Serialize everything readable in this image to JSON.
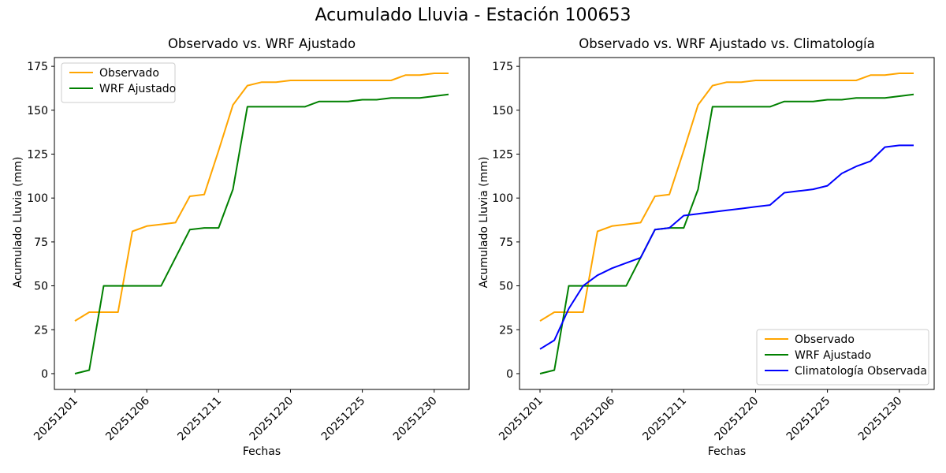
{
  "figure": {
    "title": "Acumulado Lluvia - Estación 100653",
    "background": "#ffffff",
    "axis_color": "#000000"
  },
  "chart_data": [
    {
      "type": "line",
      "title": "Observado vs. WRF Ajustado",
      "xlabel": "Fechas",
      "ylabel": "Acumulado Lluvia (mm)",
      "grid": false,
      "n_points": 27,
      "ylim": [
        -9,
        180
      ],
      "y_ticks": [
        0,
        25,
        50,
        75,
        100,
        125,
        150,
        175
      ],
      "x_tick_positions": [
        0,
        5,
        10,
        15,
        20,
        25
      ],
      "x_tick_labels": [
        "20251201",
        "20251206",
        "20251211",
        "20251220",
        "20251225",
        "20251230"
      ],
      "x_tick_rotation": 45,
      "line_width": 2,
      "legend_position": "upper-left",
      "series": [
        {
          "name": "Observado",
          "color": "#FFA500",
          "values": [
            30,
            35,
            35,
            35,
            81,
            84,
            85,
            86,
            101,
            102,
            127,
            153,
            164,
            166,
            166,
            167,
            167,
            167,
            167,
            167,
            167,
            167,
            167,
            170,
            170,
            171,
            171
          ]
        },
        {
          "name": "WRF Ajustado",
          "color": "#008000",
          "values": [
            0,
            2,
            50,
            50,
            50,
            50,
            50,
            66,
            82,
            83,
            83,
            105,
            152,
            152,
            152,
            152,
            152,
            155,
            155,
            155,
            156,
            156,
            157,
            157,
            157,
            158,
            159
          ]
        }
      ]
    },
    {
      "type": "line",
      "title": "Observado vs. WRF Ajustado vs. Climatología",
      "xlabel": "Fechas",
      "ylabel": "Acumulado Lluvia (mm)",
      "grid": false,
      "n_points": 27,
      "ylim": [
        -9,
        180
      ],
      "y_ticks": [
        0,
        25,
        50,
        75,
        100,
        125,
        150,
        175
      ],
      "x_tick_positions": [
        0,
        5,
        10,
        15,
        20,
        25
      ],
      "x_tick_labels": [
        "20251201",
        "20251206",
        "20251211",
        "20251220",
        "20251225",
        "20251230"
      ],
      "x_tick_rotation": 45,
      "line_width": 2,
      "legend_position": "lower-right",
      "series": [
        {
          "name": "Observado",
          "color": "#FFA500",
          "values": [
            30,
            35,
            35,
            35,
            81,
            84,
            85,
            86,
            101,
            102,
            127,
            153,
            164,
            166,
            166,
            167,
            167,
            167,
            167,
            167,
            167,
            167,
            167,
            170,
            170,
            171,
            171
          ]
        },
        {
          "name": "WRF Ajustado",
          "color": "#008000",
          "values": [
            0,
            2,
            50,
            50,
            50,
            50,
            50,
            66,
            82,
            83,
            83,
            105,
            152,
            152,
            152,
            152,
            152,
            155,
            155,
            155,
            156,
            156,
            157,
            157,
            157,
            158,
            159
          ]
        },
        {
          "name": "Climatología Observada",
          "color": "#0000FF",
          "values": [
            14,
            19,
            37,
            50,
            56,
            60,
            63,
            66,
            82,
            83,
            90,
            91,
            92,
            93,
            94,
            95,
            96,
            103,
            104,
            105,
            107,
            114,
            118,
            121,
            129,
            130,
            130
          ]
        }
      ]
    }
  ]
}
